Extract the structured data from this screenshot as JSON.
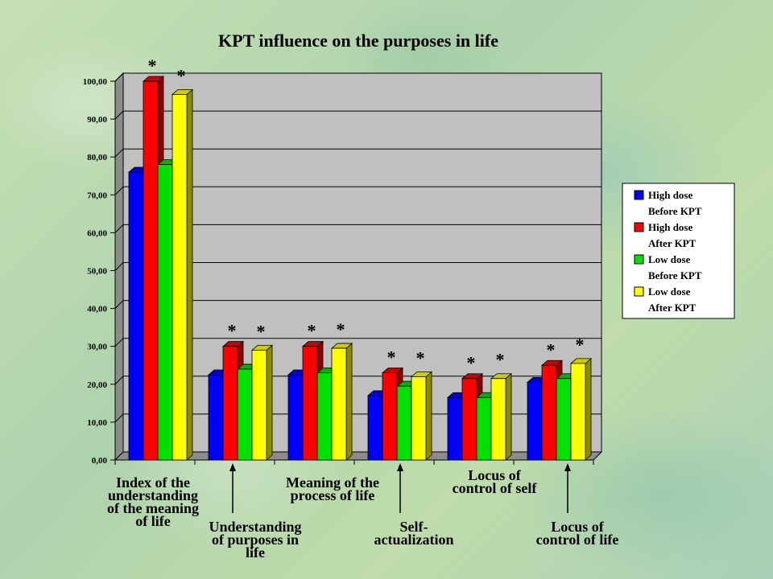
{
  "chart_data": {
    "type": "bar",
    "title": "KPT influence on the purposes in life",
    "xlabel": "",
    "ylabel": "",
    "ylim": [
      0,
      100
    ],
    "y_ticks": [
      "0,00",
      "10,00",
      "20,00",
      "30,00",
      "40,00",
      "50,00",
      "60,00",
      "70,00",
      "80,00",
      "90,00",
      "100,00"
    ],
    "grid": true,
    "legend_position": "right",
    "categories": [
      "Index of the understanding of the meaning of life",
      "Understanding of purposes in life",
      "Meaning of the process of life",
      "Self-actualization",
      "Locus of control of self",
      "Locus of control of life"
    ],
    "category_label_lines": [
      [
        "Index of the",
        "understanding",
        "of the meaning",
        "of life"
      ],
      [
        "Understanding",
        "of purposes in",
        "life"
      ],
      [
        "Meaning of the",
        "process of life"
      ],
      [
        "Self-",
        "actualization"
      ],
      [
        "Locus of",
        "control of self"
      ],
      [
        "Locus of",
        "control of life"
      ]
    ],
    "series": [
      {
        "name": "High dose Before KPT",
        "name_lines": [
          "High dose",
          "Before KPT"
        ],
        "color": "#0000ff",
        "values": [
          76,
          22.5,
          22.5,
          17,
          16.5,
          20.5
        ]
      },
      {
        "name": "High dose After KPT",
        "name_lines": [
          "High dose",
          "After KPT"
        ],
        "color": "#ff0000",
        "values": [
          100,
          30,
          30,
          23,
          21.5,
          25
        ]
      },
      {
        "name": "Low dose Before KPT",
        "name_lines": [
          "Low dose",
          "Before KPT"
        ],
        "color": "#00e000",
        "values": [
          78,
          24,
          23,
          19.5,
          16.5,
          21.5
        ]
      },
      {
        "name": "Low dose After KPT",
        "name_lines": [
          "Low dose",
          "After KPT"
        ],
        "color": "#ffff00",
        "values": [
          96.5,
          29,
          29.5,
          22,
          21.5,
          25.5
        ]
      }
    ],
    "significance_marker": "*",
    "significant_series": [
      "High dose After KPT",
      "Low dose After KPT"
    ]
  }
}
